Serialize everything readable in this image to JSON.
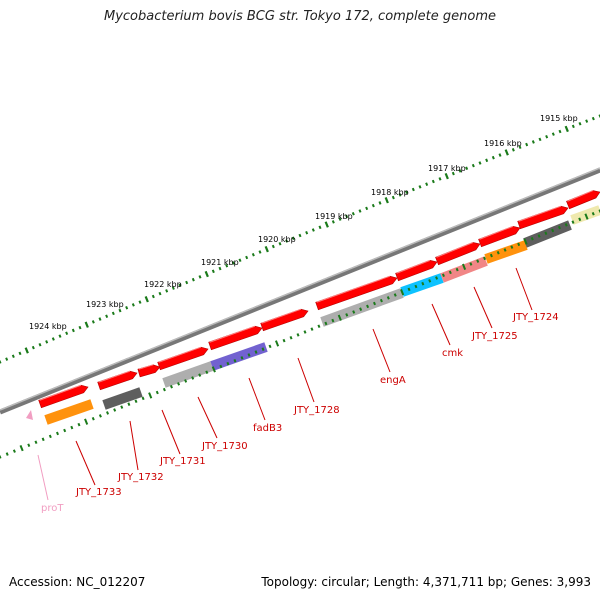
{
  "title": "Mycobacterium bovis BCG str. Tokyo 172, complete genome",
  "footer": {
    "accession": "Accession: NC_012207",
    "summary": "Topology: circular; Length: 4,371,711 bp; Genes: 3,993"
  },
  "scale_labels": [
    "1915 kbp",
    "1916 kbp",
    "1917 kbp",
    "1918 kbp",
    "1919 kbp",
    "1920 kbp",
    "1921 kbp",
    "1922 kbp",
    "1923 kbp",
    "1924 kbp"
  ],
  "colors": {
    "backbone": "#888888",
    "cds": "#ff0000",
    "scale_ticks": "#1a7a1a",
    "label_red": "#cc0000",
    "label_pink": "#f19ec2"
  },
  "genes": [
    {
      "name": "JTY_1724",
      "color": "#cc0000"
    },
    {
      "name": "JTY_1725",
      "color": "#cc0000"
    },
    {
      "name": "cmk",
      "color": "#cc0000"
    },
    {
      "name": "engA",
      "color": "#cc0000"
    },
    {
      "name": "JTY_1728",
      "color": "#cc0000"
    },
    {
      "name": "fadB3",
      "color": "#cc0000"
    },
    {
      "name": "JTY_1730",
      "color": "#cc0000"
    },
    {
      "name": "JTY_1731",
      "color": "#cc0000"
    },
    {
      "name": "JTY_1732",
      "color": "#cc0000"
    },
    {
      "name": "JTY_1733",
      "color": "#cc0000"
    },
    {
      "name": "proT",
      "color": "#f19ec2"
    }
  ],
  "tracks": {
    "cds_color": "#ff0000",
    "category_colors": [
      "#ff8c00",
      "#555555",
      "#aaaaaa",
      "#6a5acd",
      "#aaaaaa",
      "#00bfff",
      "#f08080",
      "#ff8c00",
      "#555555",
      "#eee8aa"
    ]
  }
}
